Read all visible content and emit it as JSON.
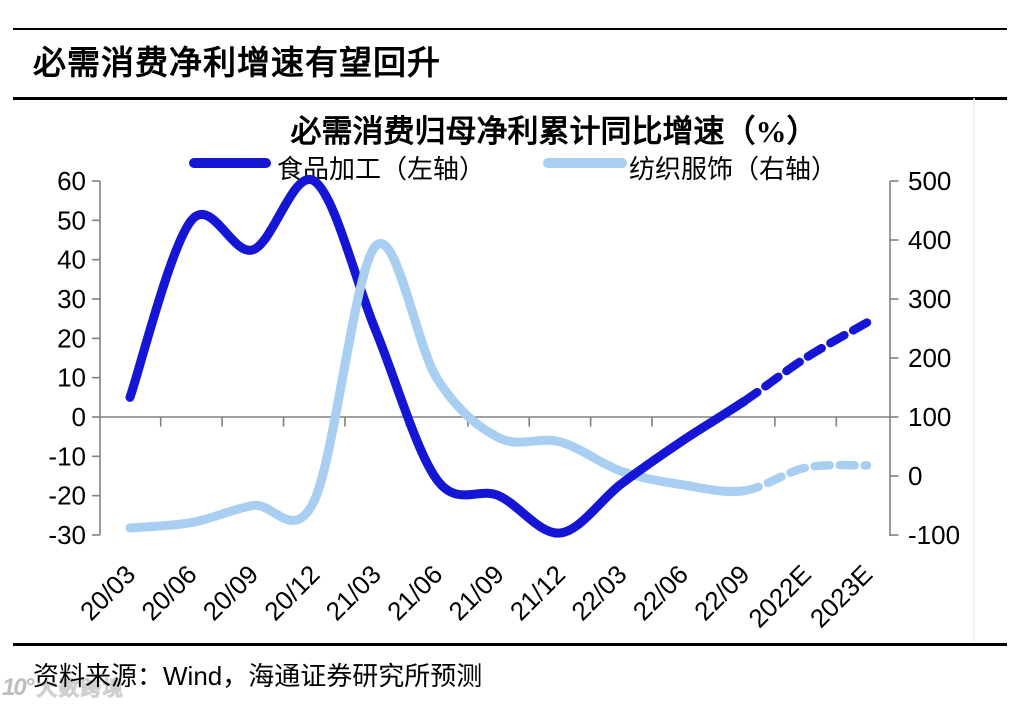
{
  "header": {
    "title": "必需消费净利增速有望回升"
  },
  "chart_data": {
    "type": "line",
    "title": "必需消费归母净利累计同比增速（%）",
    "categories": [
      "20/03",
      "20/06",
      "20/09",
      "20/12",
      "21/03",
      "21/06",
      "21/09",
      "21/12",
      "22/03",
      "22/06",
      "22/09",
      "2022E",
      "2023E"
    ],
    "series": [
      {
        "name": "食品加工（左轴）",
        "axis": "left",
        "color": "#1515d6",
        "values": [
          5,
          50,
          42.5,
          60,
          22,
          -16,
          -20,
          -29.5,
          -17,
          -6,
          4,
          15,
          24
        ],
        "solid_until_index": 10,
        "forecast_style": "dashed"
      },
      {
        "name": "纺织服饰（右轴）",
        "axis": "right",
        "color": "#a8cef2",
        "values": [
          -88,
          -79,
          -50,
          -42,
          390,
          165,
          65,
          58,
          8,
          -15,
          -25,
          14,
          18
        ],
        "solid_until_index": 10,
        "forecast_style": "dashed"
      }
    ],
    "left_axis": {
      "min": -30,
      "max": 60,
      "tick_step": 10,
      "ticks": [
        60,
        50,
        40,
        30,
        20,
        10,
        0,
        -10,
        -20,
        -30
      ]
    },
    "right_axis": {
      "min": -100,
      "max": 500,
      "tick_step": 100,
      "ticks": [
        500,
        400,
        300,
        200,
        100,
        0,
        -100
      ]
    },
    "legend_position": "top",
    "grid": "zero-line-only",
    "forecast_categories": [
      "2022E",
      "2023E"
    ]
  },
  "source": {
    "prefix": "资料来源：",
    "vendor": "Wind",
    "suffix": "，海通证券研究所预测"
  },
  "watermark": {
    "logo": "10°",
    "text": "大数跨境"
  },
  "colors": {
    "axis_gray": "#808080",
    "faint_border": "#ececec",
    "rule_black": "#000000"
  }
}
